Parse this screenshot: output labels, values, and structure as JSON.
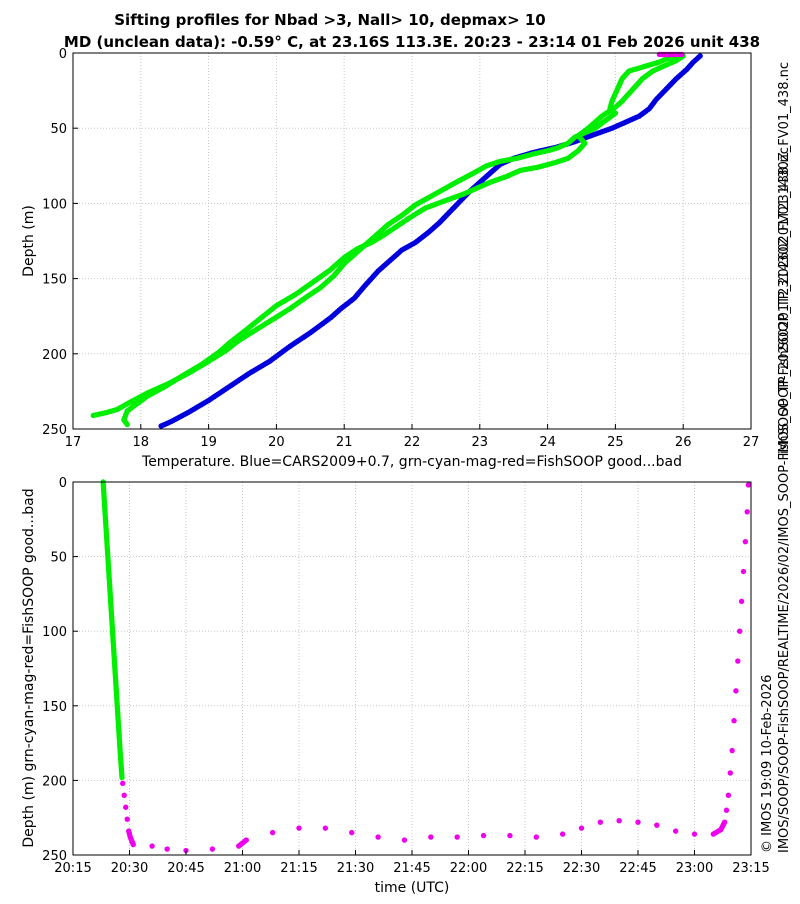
{
  "page": {
    "title_line1": "Sifting profiles for Nbad >3, Nall> 10, depmax> 10",
    "title_line2": "MD (unclean data): -0.59° C, at 23.16S 113.3E. 20:23 - 23:14 01 Feb 2026 unit 438",
    "side_text_top": "IMOS_SOOP-FishSOOP_TP_20260201T231430Z_FV01_438.nc",
    "side_text_bottom_1": "© IMOS 19:09 10-Feb-2026",
    "side_text_bottom_2": "IMOS/SOOP/SOOP-FishSOOP/REALTIME/2026/02/IMOS_SOOP-FishSOOP_TP_20260201T231430Z_FV01_438.nc"
  },
  "colors": {
    "green": "#00ee00",
    "blue": "#0000dd",
    "magenta": "#ee00ee",
    "axis": "#000000"
  },
  "chart_data": [
    {
      "type": "scatter",
      "xlabel": "Temperature. Blue=CARS2009+0.7, grn-cyan-mag-red=FishSOOP good...bad",
      "ylabel": "Depth (m)",
      "xlim": [
        17,
        27
      ],
      "ylim": [
        250,
        0
      ],
      "y_reversed": true,
      "grid": true,
      "xticks": [
        17,
        18,
        19,
        20,
        21,
        22,
        23,
        24,
        25,
        26,
        27
      ],
      "yticks": [
        0,
        50,
        100,
        150,
        200,
        250
      ],
      "series": [
        {
          "color": "blue",
          "points": [
            [
              26.25,
              2
            ],
            [
              26.15,
              6
            ],
            [
              26.05,
              11
            ],
            [
              25.9,
              17
            ],
            [
              25.75,
              24
            ],
            [
              25.6,
              31
            ],
            [
              25.5,
              37
            ],
            [
              25.35,
              42
            ],
            [
              25.15,
              46
            ],
            [
              24.95,
              50
            ],
            [
              24.7,
              54
            ],
            [
              24.4,
              59
            ],
            [
              24.1,
              63
            ],
            [
              23.8,
              66
            ],
            [
              23.5,
              70
            ],
            [
              23.3,
              74
            ],
            [
              23.15,
              80
            ],
            [
              23.0,
              86
            ],
            [
              22.85,
              92
            ],
            [
              22.7,
              99
            ],
            [
              22.55,
              106
            ],
            [
              22.4,
              113
            ],
            [
              22.25,
              119
            ],
            [
              22.05,
              126
            ],
            [
              21.85,
              131
            ],
            [
              21.7,
              137
            ],
            [
              21.5,
              145
            ],
            [
              21.3,
              155
            ],
            [
              21.15,
              163
            ],
            [
              20.95,
              170
            ],
            [
              20.8,
              176
            ],
            [
              20.5,
              186
            ],
            [
              20.2,
              195
            ],
            [
              19.9,
              205
            ],
            [
              19.6,
              213
            ],
            [
              19.3,
              222
            ],
            [
              19.0,
              231
            ],
            [
              18.7,
              239
            ],
            [
              18.45,
              245
            ],
            [
              18.3,
              248
            ]
          ]
        },
        {
          "color": "green",
          "points": [
            [
              25.9,
              2
            ],
            [
              25.75,
              4
            ],
            [
              25.65,
              6
            ],
            [
              25.5,
              8
            ],
            [
              25.35,
              10
            ],
            [
              25.2,
              12
            ],
            [
              25.1,
              17
            ],
            [
              25.05,
              22
            ],
            [
              25.0,
              27
            ],
            [
              24.95,
              32
            ],
            [
              24.92,
              37
            ],
            [
              25.0,
              40
            ],
            [
              24.85,
              45
            ],
            [
              24.7,
              50
            ],
            [
              24.55,
              53
            ],
            [
              24.4,
              56
            ],
            [
              24.3,
              60
            ],
            [
              24.15,
              63
            ],
            [
              24.0,
              65
            ],
            [
              23.8,
              67
            ],
            [
              23.55,
              70
            ],
            [
              23.3,
              72
            ],
            [
              23.1,
              75
            ],
            [
              22.9,
              80
            ],
            [
              22.65,
              86
            ],
            [
              22.45,
              91
            ],
            [
              22.25,
              96
            ],
            [
              22.05,
              101
            ],
            [
              21.85,
              108
            ],
            [
              21.65,
              114
            ],
            [
              21.5,
              120
            ],
            [
              21.35,
              126
            ],
            [
              21.2,
              132
            ],
            [
              21.0,
              140
            ],
            [
              20.85,
              148
            ],
            [
              20.65,
              156
            ],
            [
              20.45,
              162
            ],
            [
              20.2,
              170
            ],
            [
              19.95,
              177
            ],
            [
              19.7,
              184
            ],
            [
              19.45,
              191
            ],
            [
              19.25,
              198
            ],
            [
              19.0,
              205
            ],
            [
              18.7,
              213
            ],
            [
              18.4,
              220
            ],
            [
              18.1,
              226
            ],
            [
              17.85,
              232
            ],
            [
              17.65,
              237
            ],
            [
              17.5,
              239
            ],
            [
              17.3,
              241
            ]
          ]
        },
        {
          "color": "green",
          "points": [
            [
              26.0,
              2
            ],
            [
              25.9,
              5
            ],
            [
              25.75,
              8
            ],
            [
              25.55,
              12
            ],
            [
              25.4,
              17
            ],
            [
              25.3,
              22
            ],
            [
              25.2,
              27
            ],
            [
              25.1,
              32
            ],
            [
              25.0,
              36
            ],
            [
              24.8,
              42
            ],
            [
              24.6,
              50
            ],
            [
              24.45,
              55
            ],
            [
              24.55,
              60
            ],
            [
              24.45,
              65
            ],
            [
              24.3,
              70
            ],
            [
              24.1,
              73
            ],
            [
              23.85,
              76
            ],
            [
              23.6,
              78
            ],
            [
              23.4,
              82
            ],
            [
              23.15,
              86
            ],
            [
              22.95,
              90
            ],
            [
              22.75,
              94
            ],
            [
              22.5,
              98
            ],
            [
              22.2,
              103
            ],
            [
              21.95,
              110
            ],
            [
              21.75,
              116
            ],
            [
              21.55,
              122
            ],
            [
              21.4,
              126
            ],
            [
              21.2,
              130
            ],
            [
              21.0,
              136
            ],
            [
              20.8,
              144
            ],
            [
              20.55,
              152
            ],
            [
              20.3,
              160
            ],
            [
              20.0,
              168
            ],
            [
              19.75,
              177
            ],
            [
              19.5,
              186
            ],
            [
              19.3,
              193
            ],
            [
              19.15,
              199
            ],
            [
              18.9,
              207
            ],
            [
              18.6,
              215
            ],
            [
              18.35,
              222
            ],
            [
              18.1,
              228
            ],
            [
              17.95,
              233
            ],
            [
              17.8,
              238
            ],
            [
              17.75,
              244
            ],
            [
              17.8,
              247
            ]
          ]
        },
        {
          "color": "magenta",
          "points": [
            [
              25.65,
              1
            ],
            [
              25.98,
              1
            ]
          ]
        }
      ]
    },
    {
      "type": "scatter",
      "xlabel": "time (UTC)",
      "ylabel": "Depth (m) grn-cyan-mag-red=FishSOOP good...bad",
      "xlim": [
        "20:15",
        "23:15"
      ],
      "ylim": [
        250,
        0
      ],
      "y_reversed": true,
      "grid": true,
      "xticks": [
        "20:15",
        "20:30",
        "20:45",
        "21:00",
        "21:15",
        "21:30",
        "21:45",
        "22:00",
        "22:15",
        "22:30",
        "22:45",
        "23:00",
        "23:15"
      ],
      "yticks": [
        0,
        50,
        100,
        150,
        200,
        250
      ],
      "series": [
        {
          "color": "green",
          "points": [
            [
              "20:23",
              0
            ],
            [
              "20:23.5",
              20
            ],
            [
              "20:24",
              40
            ],
            [
              "20:24.5",
              60
            ],
            [
              "20:25",
              80
            ],
            [
              "20:25.5",
              100
            ],
            [
              "20:26",
              120
            ],
            [
              "20:26.5",
              140
            ],
            [
              "20:27",
              160
            ],
            [
              "20:27.5",
              180
            ],
            [
              "20:28",
              198
            ]
          ]
        },
        {
          "color": "magenta",
          "points": [
            [
              "20:28.2",
              202
            ],
            [
              "20:28.6",
              210
            ],
            [
              "20:29",
              218
            ],
            [
              "20:29.4",
              226
            ],
            [
              "20:29.8",
              234
            ],
            [
              "20:30.2",
              238
            ],
            [
              "20:31",
              243
            ],
            [
              "20:36",
              244
            ],
            [
              "20:40",
              246
            ],
            [
              "20:45",
              247
            ],
            [
              "20:52",
              246
            ],
            [
              "20:59",
              244
            ],
            [
              "21:01",
              240
            ],
            [
              "21:08",
              235
            ],
            [
              "21:15",
              232
            ],
            [
              "21:22",
              232
            ],
            [
              "21:29",
              235
            ],
            [
              "21:36",
              238
            ],
            [
              "21:43",
              240
            ],
            [
              "21:50",
              238
            ],
            [
              "21:57",
              238
            ],
            [
              "22:04",
              237
            ],
            [
              "22:11",
              237
            ],
            [
              "22:18",
              238
            ],
            [
              "22:25",
              236
            ],
            [
              "22:30",
              232
            ],
            [
              "22:35",
              228
            ],
            [
              "22:40",
              227
            ],
            [
              "22:45",
              228
            ],
            [
              "22:50",
              230
            ],
            [
              "22:55",
              234
            ],
            [
              "23:00",
              236
            ],
            [
              "23:05",
              236
            ],
            [
              "23:07",
              233
            ],
            [
              "23:08",
              228
            ],
            [
              "23:08.5",
              220
            ],
            [
              "23:09",
              210
            ],
            [
              "23:09.5",
              195
            ],
            [
              "23:10",
              180
            ],
            [
              "23:10.5",
              160
            ],
            [
              "23:11",
              140
            ],
            [
              "23:11.5",
              120
            ],
            [
              "23:12",
              100
            ],
            [
              "23:12.5",
              80
            ],
            [
              "23:13",
              60
            ],
            [
              "23:13.5",
              40
            ],
            [
              "23:14",
              20
            ],
            [
              "23:14.3",
              2
            ]
          ]
        }
      ]
    }
  ]
}
